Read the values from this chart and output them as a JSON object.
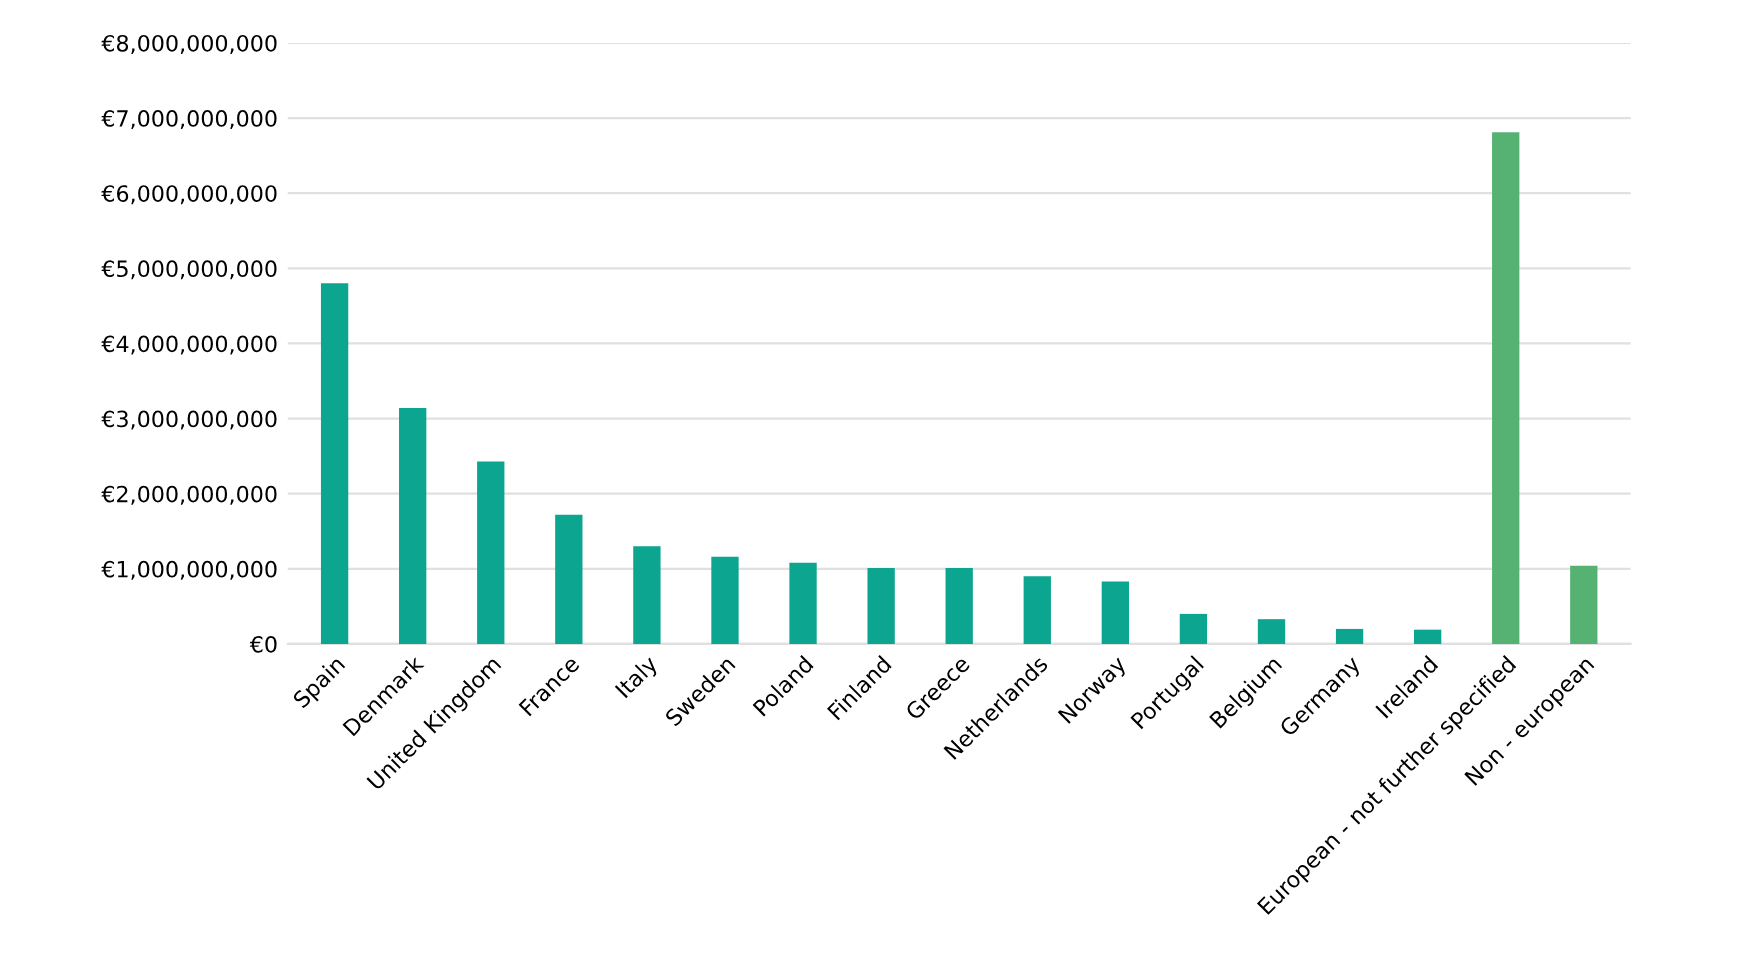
{
  "chart_data": {
    "type": "bar",
    "categories": [
      "Spain",
      "Denmark",
      "United Kingdom",
      "France",
      "Italy",
      "Sweden",
      "Poland",
      "Finland",
      "Greece",
      "Netherlands",
      "Norway",
      "Portugal",
      "Belgium",
      "Germany",
      "Ireland",
      "European - not further specified",
      "Non - european"
    ],
    "values": [
      4800000000.0,
      3140000000.0,
      2430000000.0,
      1720000000.0,
      1300000000.0,
      1160000000.0,
      1080000000.0,
      1010000000.0,
      1010000000.0,
      900000000.0,
      830000000.0,
      400000000.0,
      330000000.0,
      200000000.0,
      190000000.0,
      6810000000.0,
      1040000000.0
    ],
    "colors": [
      "#0ca58f",
      "#0ca58f",
      "#0ca58f",
      "#0ca58f",
      "#0ca58f",
      "#0ca58f",
      "#0ca58f",
      "#0ca58f",
      "#0ca58f",
      "#0ca58f",
      "#0ca58f",
      "#0ca58f",
      "#0ca58f",
      "#0ca58f",
      "#0ca58f",
      "#55b273",
      "#55b273"
    ],
    "ylim": [
      0,
      8000000000
    ],
    "yticks": [
      {
        "value": 0,
        "label": "€0"
      },
      {
        "value": 1000000000,
        "label": "€1,000,000,000"
      },
      {
        "value": 2000000000,
        "label": "€2,000,000,000"
      },
      {
        "value": 3000000000,
        "label": "€3,000,000,000"
      },
      {
        "value": 4000000000,
        "label": "€4,000,000,000"
      },
      {
        "value": 5000000000,
        "label": "€5,000,000,000"
      },
      {
        "value": 6000000000,
        "label": "€6,000,000,000"
      },
      {
        "value": 7000000000,
        "label": "€7,000,000,000"
      },
      {
        "value": 8000000000,
        "label": "€8,000,000,000"
      }
    ],
    "grid": "y"
  }
}
